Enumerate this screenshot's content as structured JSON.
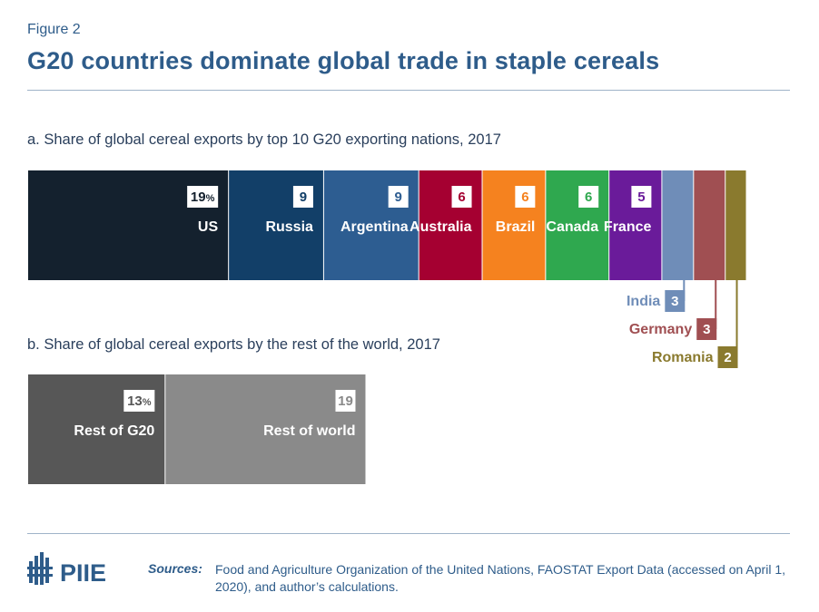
{
  "figure_label": "Figure 2",
  "title": "G20 countries dominate global trade in staple cereals",
  "footer": {
    "logo_text": "PIIE",
    "sources_label": "Sources:",
    "sources_text": "Food and Agriculture Organization of the United Nations, FAOSTAT Export Data (accessed on April 1, 2020), and author’s calculations."
  },
  "chart_data": [
    {
      "type": "bar",
      "orientation": "horizontal-stacked",
      "title": "a. Share of global cereal exports by top 10 G20 exporting nations, 2017",
      "unit": "%",
      "segments": [
        {
          "name": "US",
          "value": 19,
          "label": "19%",
          "color": "#14212e"
        },
        {
          "name": "Russia",
          "value": 9,
          "label": "9",
          "color": "#123f68"
        },
        {
          "name": "Argentina",
          "value": 9,
          "label": "9",
          "color": "#2d5d91"
        },
        {
          "name": "Australia",
          "value": 6,
          "label": "6",
          "color": "#a50031"
        },
        {
          "name": "Brazil",
          "value": 6,
          "label": "6",
          "color": "#f5821f"
        },
        {
          "name": "Canada",
          "value": 6,
          "label": "6",
          "color": "#2fa84f"
        },
        {
          "name": "France",
          "value": 5,
          "label": "5",
          "color": "#6a1b9a"
        },
        {
          "name": "India",
          "value": 3,
          "label": "3",
          "color": "#6f8db8"
        },
        {
          "name": "Germany",
          "value": 3,
          "label": "3",
          "color": "#a04f52"
        },
        {
          "name": "Romania",
          "value": 2,
          "label": "2",
          "color": "#8a7a2e"
        }
      ]
    },
    {
      "type": "bar",
      "orientation": "horizontal-stacked",
      "title": "b. Share of global cereal exports by the rest of the world, 2017",
      "unit": "%",
      "segments": [
        {
          "name": "Rest of G20",
          "value": 13,
          "label": "13%",
          "color": "#575757"
        },
        {
          "name": "Rest of world",
          "value": 19,
          "label": "19",
          "color": "#8a8a8a"
        }
      ]
    }
  ]
}
